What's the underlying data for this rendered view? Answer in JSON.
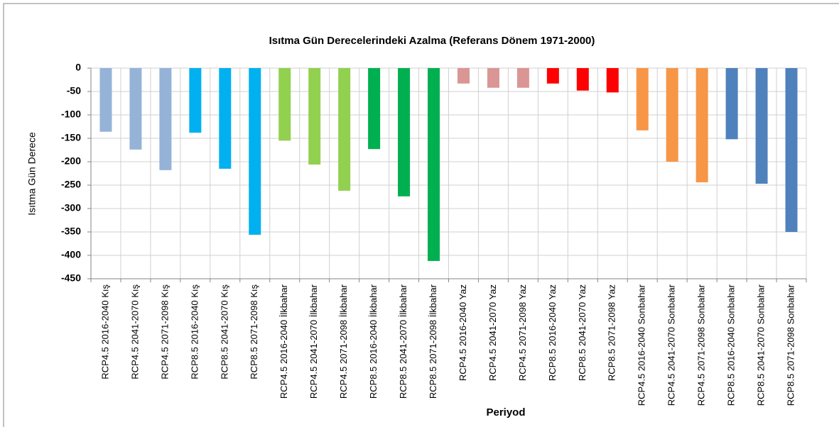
{
  "chart_data": {
    "type": "bar",
    "title": "Isıtma Gün Derecelerindeki Azalma (Referans Dönem 1971-2000)",
    "x_label": "Periyod",
    "y_label": "Isıtma Gün Derece",
    "categories": [
      "RCP4.5 2016-2040 Kış",
      "RCP4.5 2041-2070 Kış",
      "RCP4.5 2071-2098 Kış",
      "RCP8.5 2016-2040 Kış",
      "RCP8.5 2041-2070 Kış",
      "RCP8.5 2071-2098 Kış",
      "RCP4.5 2016-2040 İlkbahar",
      "RCP4.5 2041-2070 İlkbahar",
      "RCP4.5 2071-2098 İlkbahar",
      "RCP8.5 2016-2040 İlkbahar",
      "RCP8.5 2041-2070 İlkbahar",
      "RCP8.5 2071-2098 İlkbahar",
      "RCP4.5 2016-2040 Yaz",
      "RCP4.5 2041-2070 Yaz",
      "RCP4.5 2071-2098 Yaz",
      "RCP8.5 2016-2040 Yaz",
      "RCP8.5 2041-2070 Yaz",
      "RCP8.5 2071-2098 Yaz",
      "RCP4.5 2016-2040 Sonbahar",
      "RCP4.5 2041-2070 Sonbahar",
      "RCP4.5 2071-2098 Sonbahar",
      "RCP8.5 2016-2040 Sonbahar",
      "RCP8.5 2041-2070 Sonbahar",
      "RCP8.5 2071-2098 Sonbahar"
    ],
    "values": [
      -136,
      -174,
      -218,
      -138,
      -215,
      -356,
      -155,
      -206,
      -262,
      -173,
      -274,
      -412,
      -33,
      -42,
      -42,
      -33,
      -48,
      -52,
      -133,
      -200,
      -244,
      -152,
      -247,
      -350
    ],
    "colors": [
      "#95b3d7",
      "#95b3d7",
      "#95b3d7",
      "#00b0f0",
      "#00b0f0",
      "#00b0f0",
      "#92d050",
      "#92d050",
      "#92d050",
      "#00b050",
      "#00b050",
      "#00b050",
      "#da9694",
      "#da9694",
      "#da9694",
      "#ff0000",
      "#ff0000",
      "#ff0000",
      "#f79646",
      "#f79646",
      "#f79646",
      "#4f81bd",
      "#4f81bd",
      "#4f81bd"
    ],
    "ylim": [
      -450,
      0
    ],
    "yticks": [
      0,
      -50,
      -100,
      -150,
      -200,
      -250,
      -300,
      -350,
      -400,
      -450
    ],
    "grid": true
  }
}
